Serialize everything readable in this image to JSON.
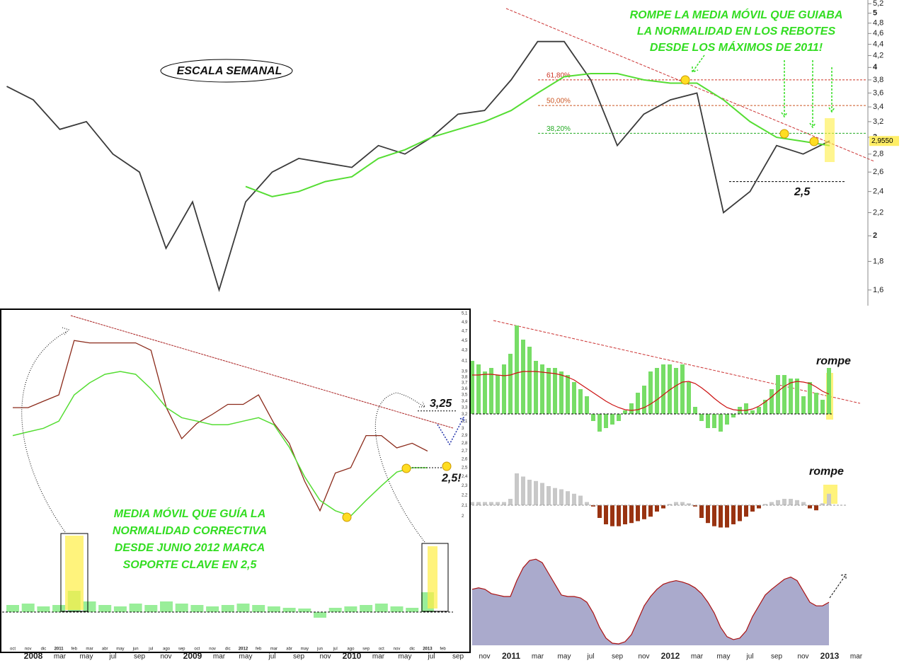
{
  "chart_data": [
    {
      "type": "line",
      "log": true,
      "scale_label": "ESCALA SEMANAL",
      "annotations": [
        "ROMPE LA MEDIA MÓVIL QUE GUIABA",
        "LA NORMALIDAD EN LOS REBOTES",
        "DESDE LOS MÁXIMOS DE 2011!"
      ],
      "categories": [
        null,
        "2008",
        "mar",
        "may",
        "jul",
        "sep",
        "nov",
        "2009",
        "mar",
        "may",
        "jul",
        "sep",
        "nov",
        "2010",
        "mar",
        "may",
        "jul",
        "sep",
        "nov",
        "2011",
        "mar",
        "may",
        "jul",
        "sep",
        "nov",
        "2012",
        "mar",
        "may",
        "jul",
        "sep",
        "nov",
        "2013",
        "mar"
      ],
      "series": [
        {
          "color": "#3a3a3a",
          "values": [
            3.7,
            3.5,
            3.1,
            3.2,
            2.8,
            2.6,
            1.9,
            2.3,
            1.6,
            2.3,
            2.6,
            2.75,
            2.7,
            2.65,
            2.9,
            2.8,
            3.0,
            3.3,
            3.35,
            3.8,
            4.45,
            4.45,
            3.8,
            2.9,
            3.3,
            3.5,
            3.6,
            2.2,
            2.4,
            2.9,
            2.8,
            2.955,
            null
          ]
        },
        {
          "color": "#55dd33",
          "values": [
            null,
            null,
            null,
            null,
            null,
            null,
            null,
            null,
            null,
            2.45,
            2.35,
            2.4,
            2.5,
            2.55,
            2.75,
            2.85,
            3.0,
            3.1,
            3.2,
            3.35,
            3.6,
            3.85,
            3.9,
            3.9,
            3.8,
            3.75,
            3.75,
            3.5,
            3.2,
            3.0,
            2.95,
            2.9,
            null
          ]
        }
      ],
      "ylim": [
        1.5,
        5.28
      ],
      "yticks": [
        {
          "value": 5.2,
          "label": "5,2"
        },
        {
          "value": 5,
          "label": "5"
        },
        {
          "value": 4.8,
          "label": "4,8"
        },
        {
          "value": 4.6,
          "label": "4,6"
        },
        {
          "value": 4.4,
          "label": "4,4"
        },
        {
          "value": 4.2,
          "label": "4,2"
        },
        4,
        {
          "value": 3.8,
          "label": "3,8"
        },
        {
          "value": 3.6,
          "label": "3,6"
        },
        {
          "value": 3.4,
          "label": "3,4"
        },
        {
          "value": 3.2,
          "label": "3,2"
        },
        3,
        {
          "value": 2.8,
          "label": "2,8"
        },
        {
          "value": 2.6,
          "label": "2,6"
        },
        {
          "value": 2.4,
          "label": "2,4"
        },
        {
          "value": 2.2,
          "label": "2,2"
        },
        2,
        {
          "value": 1.8,
          "label": "1,8"
        },
        {
          "value": 1.6,
          "label": "1,6"
        }
      ],
      "fib_levels": [
        {
          "value": 3.8,
          "label": "61,80%",
          "color": "#cc3322"
        },
        {
          "value": 3.42,
          "label": "50,00%",
          "color": "#cc5522"
        },
        {
          "value": 3.05,
          "label": "38,20%",
          "color": "#22aa22"
        }
      ],
      "support": {
        "value": 2.5,
        "label": "2,5"
      },
      "last_price": {
        "value": 2.955,
        "label": "2,9550"
      }
    },
    {
      "type": "line",
      "log": true,
      "annotations": [
        "MEDIA MÓVIL QUE GUÍA LA",
        "NORMALIDAD CORRECTIVA",
        "DESDE JUNIO 2012 MARCA",
        "SOPORTE CLAVE EN 2,5"
      ],
      "marks": [
        {
          "value": 3.25,
          "label": "3,25"
        },
        {
          "value": 2.5,
          "label": "2,5!"
        }
      ],
      "categories": [
        "oct",
        "nov",
        "dic",
        "2011",
        "feb",
        "mar",
        "abr",
        "may",
        "jun",
        "jul",
        "ago",
        "sep",
        "oct",
        "nov",
        "dic",
        "2012",
        "feb",
        "mar",
        "abr",
        "may",
        "jun",
        "jul",
        "ago",
        "sep",
        "oct",
        "nov",
        "dic",
        "2013",
        "feb"
      ],
      "series": [
        {
          "color": "#8b2a1a",
          "values": [
            3.3,
            3.3,
            3.4,
            3.5,
            4.5,
            4.45,
            4.45,
            4.45,
            4.45,
            4.3,
            3.3,
            2.86,
            3.07,
            3.2,
            3.35,
            3.35,
            3.5,
            3.07,
            2.8,
            2.35,
            2.05,
            2.44,
            2.5,
            2.9,
            2.9,
            2.74,
            2.8,
            2.7,
            null
          ]
        },
        {
          "color": "#55dd33",
          "values": [
            2.9,
            2.95,
            3.0,
            3.1,
            3.5,
            3.7,
            3.85,
            3.9,
            3.85,
            3.6,
            3.3,
            3.15,
            3.1,
            3.05,
            3.05,
            3.1,
            3.15,
            3.05,
            2.75,
            2.4,
            2.15,
            2.05,
            2.0,
            2.15,
            2.3,
            2.45,
            2.5,
            2.5,
            null
          ]
        }
      ],
      "volume": {
        "color": "#99ee99",
        "ylim": [
          -30,
          40
        ],
        "values": [
          10,
          12,
          8,
          10,
          30,
          15,
          10,
          8,
          12,
          10,
          15,
          12,
          10,
          8,
          10,
          12,
          10,
          8,
          6,
          5,
          -8,
          6,
          8,
          10,
          12,
          8,
          6,
          28,
          null
        ]
      },
      "ylim": [
        1.9,
        5.2
      ],
      "yticks": [
        {
          "value": 5.1,
          "label": "5,1"
        },
        {
          "value": 4.9,
          "label": "4,9"
        },
        {
          "value": 4.7,
          "label": "4,7"
        },
        {
          "value": 4.5,
          "label": "4,5"
        },
        {
          "value": 4.3,
          "label": "4,3"
        },
        {
          "value": 4.1,
          "label": "4,1"
        },
        {
          "value": 3.9,
          "label": "3,9"
        },
        {
          "value": 3.8,
          "label": "3,8"
        },
        {
          "value": 3.7,
          "label": "3,7"
        },
        {
          "value": 3.6,
          "label": "3,6"
        },
        {
          "value": 3.5,
          "label": "3,5"
        },
        {
          "value": 3.4,
          "label": "3,4"
        },
        {
          "value": 3.3,
          "label": "3,3"
        },
        {
          "value": 3.2,
          "label": "3,2"
        },
        {
          "value": 3.1,
          "label": "3,1"
        },
        3,
        {
          "value": 2.9,
          "label": "2,9"
        },
        {
          "value": 2.8,
          "label": "2,8"
        },
        {
          "value": 2.7,
          "label": "2,7"
        },
        {
          "value": 2.6,
          "label": "2,6"
        },
        {
          "value": 2.5,
          "label": "2,5"
        },
        {
          "value": 2.4,
          "label": "2,4"
        },
        {
          "value": 2.3,
          "label": "2,3"
        },
        {
          "value": 2.2,
          "label": "2,2"
        },
        {
          "value": 2.1,
          "label": "2,1"
        },
        2
      ]
    },
    {
      "type": "bar",
      "annotation": "rompe",
      "color": "#77dd66",
      "ylim": [
        -35,
        130
      ],
      "values": [
        75,
        70,
        60,
        65,
        55,
        70,
        85,
        125,
        105,
        95,
        75,
        70,
        65,
        65,
        60,
        55,
        45,
        35,
        25,
        -10,
        -25,
        -20,
        -15,
        -10,
        5,
        15,
        30,
        40,
        60,
        65,
        70,
        70,
        65,
        70,
        45,
        10,
        -10,
        -20,
        -20,
        -25,
        -15,
        -5,
        10,
        15,
        5,
        10,
        20,
        35,
        55,
        55,
        50,
        50,
        25,
        45,
        30,
        20,
        65
      ],
      "line": {
        "color": "#cc1111",
        "values": [
          55,
          55,
          56,
          56,
          55,
          54,
          55,
          58,
          60,
          60,
          60,
          59,
          58,
          57,
          55,
          52,
          48,
          42,
          36,
          30,
          24,
          18,
          13,
          9,
          6,
          5,
          6,
          9,
          14,
          20,
          27,
          34,
          40,
          45,
          46,
          43,
          37,
          30,
          22,
          15,
          9,
          6,
          5,
          5,
          7,
          11,
          17,
          24,
          32,
          39,
          44,
          46,
          45,
          43,
          38,
          32,
          28
        ]
      }
    },
    {
      "type": "bar",
      "annotation": "rompe",
      "color": "#c8c8c8",
      "negative_color": "#993311",
      "ylim": [
        -40,
        60
      ],
      "values": [
        5,
        5,
        5,
        5,
        5,
        5,
        10,
        50,
        45,
        40,
        38,
        35,
        30,
        27,
        25,
        22,
        18,
        15,
        5,
        -2,
        -20,
        -30,
        -33,
        -33,
        -30,
        -28,
        -25,
        -22,
        -18,
        -10,
        -5,
        2,
        5,
        5,
        3,
        -2,
        -20,
        -28,
        -33,
        -35,
        -35,
        -30,
        -25,
        -18,
        -10,
        -5,
        2,
        5,
        8,
        10,
        10,
        8,
        5,
        -5,
        -8,
        3,
        18
      ]
    },
    {
      "type": "area",
      "color": "#aaaacc",
      "line_color": "#aa1111",
      "ylim": [
        0,
        130
      ],
      "values": [
        78,
        80,
        78,
        72,
        70,
        68,
        68,
        90,
        108,
        118,
        120,
        115,
        100,
        85,
        70,
        68,
        68,
        66,
        60,
        45,
        25,
        10,
        3,
        2,
        5,
        15,
        35,
        55,
        68,
        78,
        85,
        88,
        90,
        88,
        85,
        80,
        72,
        60,
        45,
        25,
        12,
        8,
        10,
        20,
        40,
        55,
        70,
        78,
        85,
        92,
        95,
        90,
        75,
        60,
        55,
        55,
        60
      ]
    }
  ]
}
